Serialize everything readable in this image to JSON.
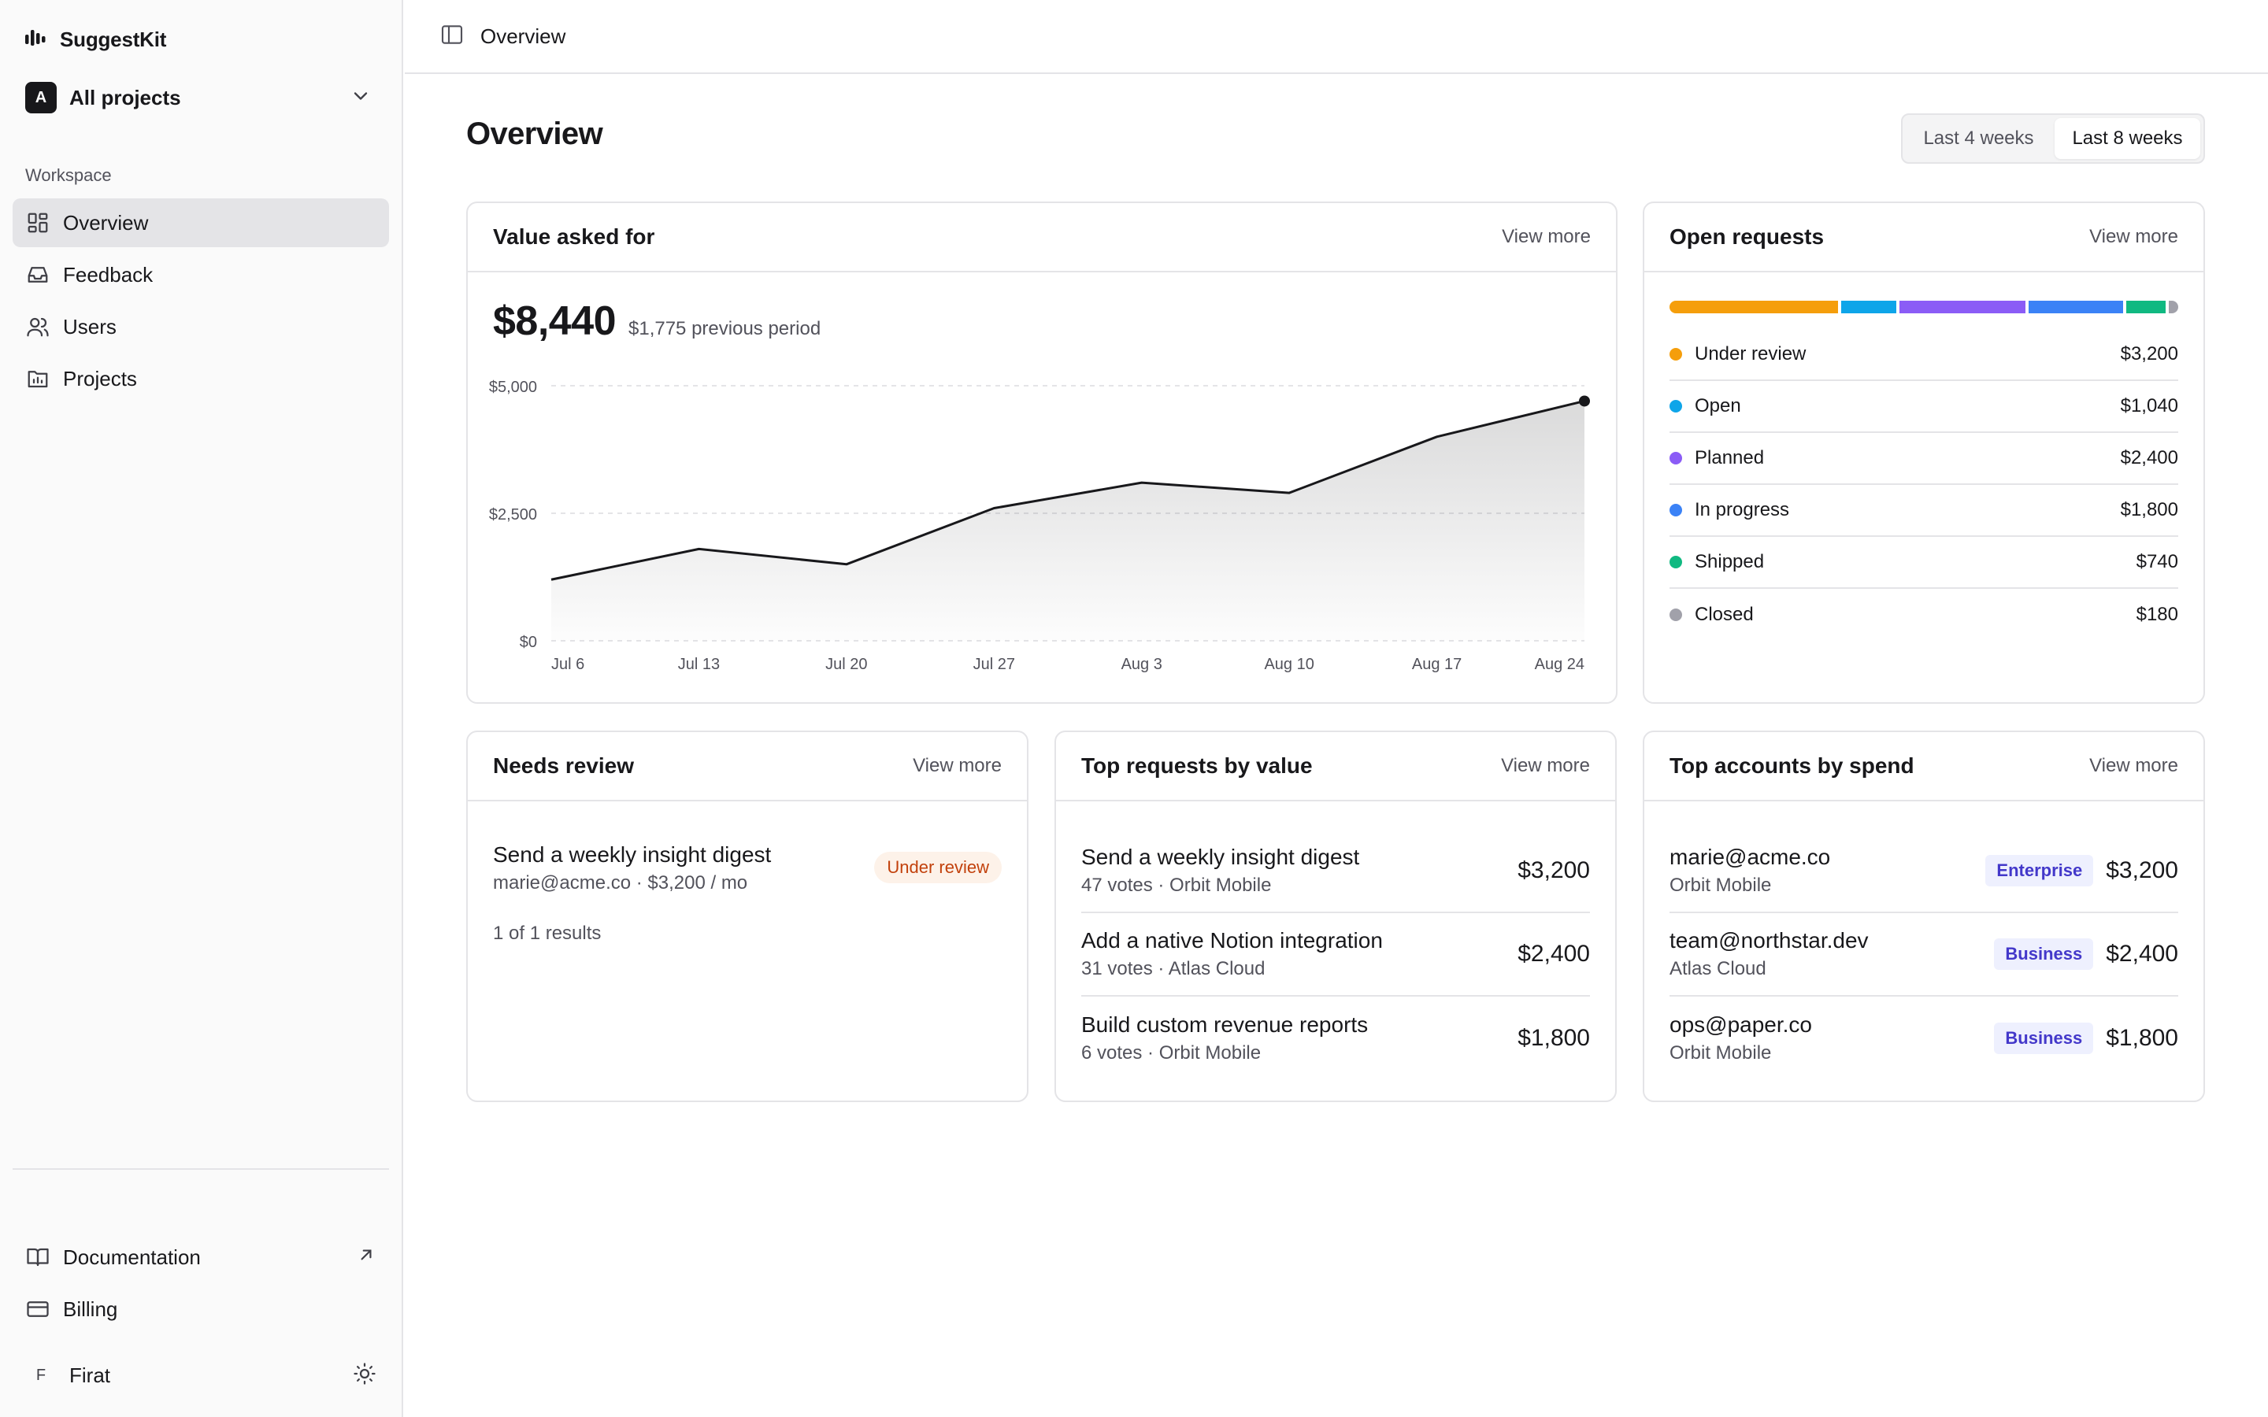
{
  "app": {
    "name": "SuggestKit"
  },
  "project_switcher": {
    "avatar_letter": "A",
    "label": "All projects"
  },
  "sidebar": {
    "section_label": "Workspace",
    "items": [
      {
        "label": "Overview",
        "icon": "dashboard-icon",
        "active": true
      },
      {
        "label": "Feedback",
        "icon": "inbox-icon",
        "active": false
      },
      {
        "label": "Users",
        "icon": "users-icon",
        "active": false
      },
      {
        "label": "Projects",
        "icon": "folder-chart-icon",
        "active": false
      }
    ],
    "footer": [
      {
        "label": "Documentation",
        "icon": "book-icon",
        "trailing_icon": "external-link-icon"
      },
      {
        "label": "Billing",
        "icon": "credit-card-icon"
      }
    ],
    "user": {
      "initial": "F",
      "name": "Firat",
      "theme_icon": "sun-icon"
    }
  },
  "topbar": {
    "title": "Overview"
  },
  "page": {
    "title": "Overview"
  },
  "range": {
    "options": [
      "Last 4 weeks",
      "Last 8 weeks"
    ],
    "selected": "Last 8 weeks"
  },
  "value_card": {
    "title": "Value asked for",
    "view_more": "View more",
    "total": "$8,440",
    "previous": "$1,775 previous period"
  },
  "chart_data": {
    "type": "area",
    "x": [
      "Jul 6",
      "Jul 13",
      "Jul 20",
      "Jul 27",
      "Aug 3",
      "Aug 10",
      "Aug 17",
      "Aug 24"
    ],
    "series": [
      {
        "values": [
          1200,
          1800,
          1500,
          2600,
          3100,
          2900,
          4000,
          4700
        ]
      }
    ],
    "ytick_labels": [
      "$0",
      "$2,500",
      "$5,000"
    ],
    "yticks": [
      0,
      2500,
      5000
    ],
    "ylim": [
      0,
      5000
    ],
    "grid": true,
    "line_color": "#18181b"
  },
  "open_requests": {
    "title": "Open requests",
    "view_more": "View more",
    "items": [
      {
        "label": "Under review",
        "value": "$3,200",
        "amount": 3200,
        "color": "#f59e0b"
      },
      {
        "label": "Open",
        "value": "$1,040",
        "amount": 1040,
        "color": "#0ea5e9"
      },
      {
        "label": "Planned",
        "value": "$2,400",
        "amount": 2400,
        "color": "#8b5cf6"
      },
      {
        "label": "In progress",
        "value": "$1,800",
        "amount": 1800,
        "color": "#3b82f6"
      },
      {
        "label": "Shipped",
        "value": "$740",
        "amount": 740,
        "color": "#10b981"
      },
      {
        "label": "Closed",
        "value": "$180",
        "amount": 180,
        "color": "#a1a1aa"
      }
    ]
  },
  "needs_review": {
    "title": "Needs review",
    "view_more": "View more",
    "item": {
      "title": "Send a weekly insight digest",
      "sub": "marie@acme.co · $3,200 / mo",
      "badge": "Under review"
    },
    "results": "1 of 1 results"
  },
  "top_requests": {
    "title": "Top requests by value",
    "view_more": "View more",
    "rows": [
      {
        "title": "Send a weekly insight digest",
        "sub": "47 votes · Orbit Mobile",
        "amount": "$3,200"
      },
      {
        "title": "Add a native Notion integration",
        "sub": "31 votes · Atlas Cloud",
        "amount": "$2,400"
      },
      {
        "title": "Build custom revenue reports",
        "sub": "6 votes · Orbit Mobile",
        "amount": "$1,800"
      }
    ]
  },
  "top_accounts": {
    "title": "Top accounts by spend",
    "view_more": "View more",
    "rows": [
      {
        "title": "marie@acme.co",
        "sub": "Orbit Mobile",
        "tier": "Enterprise",
        "amount": "$3,200"
      },
      {
        "title": "team@northstar.dev",
        "sub": "Atlas Cloud",
        "tier": "Business",
        "amount": "$2,400"
      },
      {
        "title": "ops@paper.co",
        "sub": "Orbit Mobile",
        "tier": "Business",
        "amount": "$1,800"
      }
    ]
  }
}
